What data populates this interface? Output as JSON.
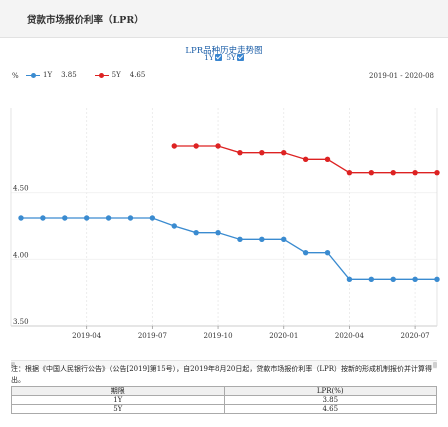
{
  "page": {
    "title": "贷款市场报价利率（LPR）"
  },
  "chart_panel": {
    "title": "LPR品种历史走势图",
    "filters": [
      {
        "label": "1Y",
        "checked": true
      },
      {
        "label": "5Y",
        "checked": true
      }
    ],
    "unit": "%",
    "date_range": "2019-01 - 2020-08"
  },
  "colors": {
    "series_1y": "#3a8bd0",
    "series_5y": "#dd2222",
    "title_blue": "#1d5fa8"
  },
  "chart_data": {
    "type": "line",
    "title": "LPR品种历史走势图",
    "ylabel": "%",
    "ylim": [
      3.5,
      5.0
    ],
    "yticks": [
      3.5,
      4.0,
      4.5
    ],
    "ytick_labels": [
      "3.50",
      "4.00",
      "4.50"
    ],
    "xlim": [
      "2019-01",
      "2020-08"
    ],
    "xticks": [
      "2019-04",
      "2019-07",
      "2019-10",
      "2020-01",
      "2020-04",
      "2020-07"
    ],
    "x": [
      "2019-01",
      "2019-02",
      "2019-03",
      "2019-04",
      "2019-05",
      "2019-06",
      "2019-07",
      "2019-08",
      "2019-09",
      "2019-10",
      "2019-11",
      "2019-12",
      "2020-01",
      "2020-02",
      "2020-03",
      "2020-04",
      "2020-05",
      "2020-06",
      "2020-07",
      "2020-08"
    ],
    "series": [
      {
        "name": "1Y",
        "legend_value": "3.85",
        "values": [
          4.31,
          4.31,
          4.31,
          4.31,
          4.31,
          4.31,
          4.31,
          4.25,
          4.2,
          4.2,
          4.15,
          4.15,
          4.15,
          4.05,
          4.05,
          3.85,
          3.85,
          3.85,
          3.85,
          3.85
        ]
      },
      {
        "name": "5Y",
        "legend_value": "4.65",
        "values": [
          null,
          null,
          null,
          null,
          null,
          null,
          null,
          4.85,
          4.85,
          4.85,
          4.8,
          4.8,
          4.8,
          4.75,
          4.75,
          4.65,
          4.65,
          4.65,
          4.65,
          4.65
        ]
      }
    ],
    "grid": "vertical",
    "legend_position": "top-left"
  },
  "note": "注：根据《中国人民银行公告》（公告[2019]第15号），自2019年8月20日起，贷款市场报价利率（LPR）按新的形成机制报价并计算得出。",
  "table": {
    "headers": [
      "期限",
      "LPR(%)"
    ],
    "rows": [
      {
        "term": "1Y",
        "value": "3.85"
      },
      {
        "term": "5Y",
        "value": "4.65"
      }
    ]
  }
}
